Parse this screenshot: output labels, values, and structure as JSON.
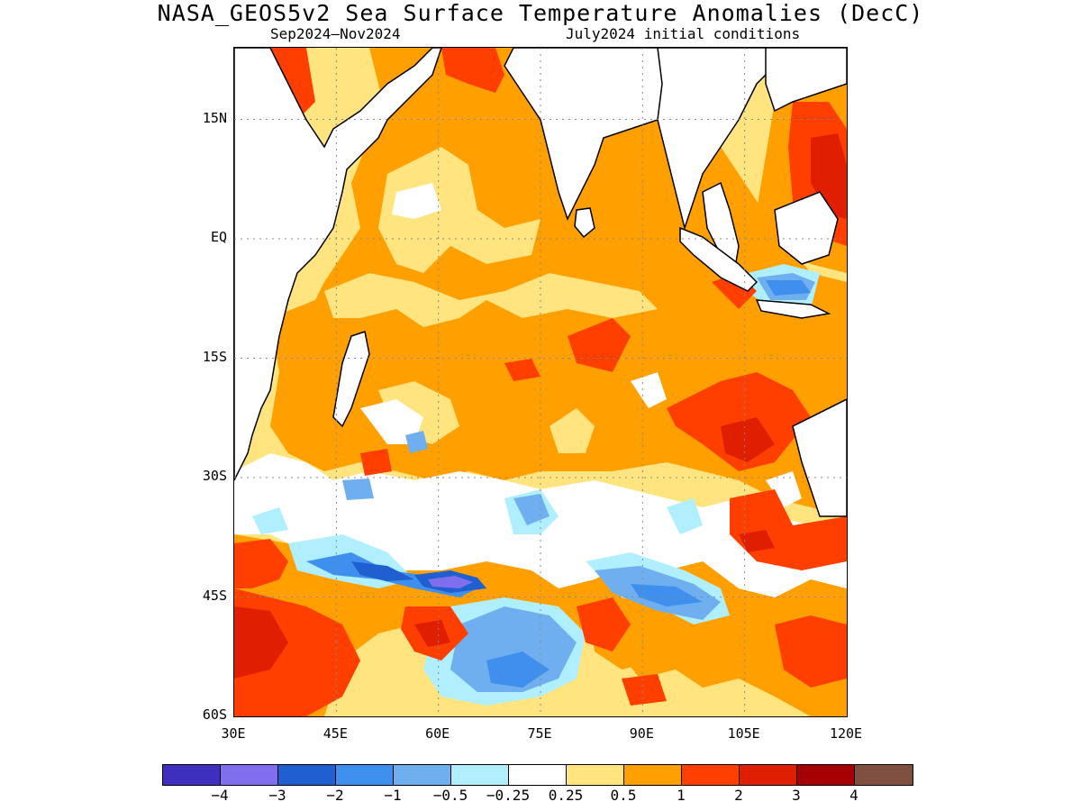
{
  "title": "NASA_GEOS5v2 Sea Surface Temperature Anomalies (DecC)",
  "subtitle_left": "Sep2024–Nov2024",
  "subtitle_right": "July2024 initial conditions",
  "lat_labels": [
    "15N",
    "EQ",
    "15S",
    "30S",
    "45S",
    "60S"
  ],
  "lon_labels": [
    "30E",
    "45E",
    "60E",
    "75E",
    "90E",
    "105E",
    "120E"
  ],
  "colorbar": {
    "colors": [
      "#3f2fbf",
      "#7f6fef",
      "#1f5fcf",
      "#3f8fef",
      "#6fafef",
      "#afefff",
      "#ffffff",
      "#ffe47f",
      "#ff9f00",
      "#ff3f00",
      "#df1f00",
      "#a70000",
      "#7f4f3f"
    ],
    "labels": [
      "−4",
      "−3",
      "−2",
      "−1",
      "−0.5",
      "−0.25",
      "0.25",
      "0.5",
      "1",
      "2",
      "3",
      "4"
    ]
  },
  "map": {
    "lon_range": [
      30,
      120
    ],
    "lat_range": [
      -60,
      24
    ],
    "grid_lons": [
      45,
      60,
      75,
      90,
      105
    ],
    "grid_lats": [
      15,
      0,
      -15,
      -30,
      -45
    ],
    "colors": {
      "background": "#ffe47f",
      "anom_1": "#ff9f00",
      "anom_2": "#ff3f00",
      "anom_3": "#df1f00",
      "anom_025": "#ffffff",
      "anom_neg025": "#afefff",
      "anom_neg05": "#6fafef",
      "anom_neg1": "#3f8fef",
      "anom_neg2": "#1f5fcf",
      "anom_neg3": "#7f6fef",
      "land": "#ffffff",
      "coast": "#000000"
    }
  }
}
